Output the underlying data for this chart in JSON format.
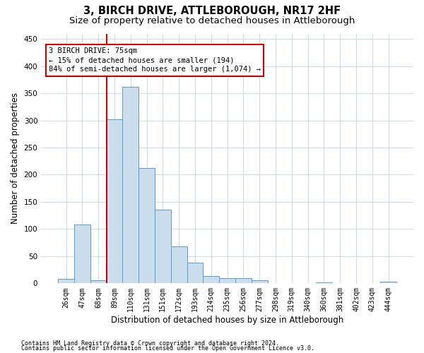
{
  "title": "3, BIRCH DRIVE, ATTLEBOROUGH, NR17 2HF",
  "subtitle": "Size of property relative to detached houses in Attleborough",
  "xlabel": "Distribution of detached houses by size in Attleborough",
  "ylabel": "Number of detached properties",
  "bar_labels": [
    "26sqm",
    "47sqm",
    "68sqm",
    "89sqm",
    "110sqm",
    "131sqm",
    "151sqm",
    "172sqm",
    "193sqm",
    "214sqm",
    "235sqm",
    "256sqm",
    "277sqm",
    "298sqm",
    "319sqm",
    "340sqm",
    "360sqm",
    "381sqm",
    "402sqm",
    "423sqm",
    "444sqm"
  ],
  "bar_values": [
    8,
    108,
    5,
    302,
    362,
    212,
    136,
    68,
    38,
    13,
    10,
    9,
    6,
    1,
    1,
    1,
    2,
    0,
    0,
    0,
    3
  ],
  "bar_color": "#c9dded",
  "bar_edge_color": "#5b9bd5",
  "annotation_text": "3 BIRCH DRIVE: 75sqm\n← 15% of detached houses are smaller (194)\n84% of semi-detached houses are larger (1,074) →",
  "vline_bar_index": 2.5,
  "vline_color": "#cc0000",
  "annotation_box_edge": "#cc0000",
  "ylim": [
    0,
    460
  ],
  "yticks": [
    0,
    50,
    100,
    150,
    200,
    250,
    300,
    350,
    400,
    450
  ],
  "footer1": "Contains HM Land Registry data © Crown copyright and database right 2024.",
  "footer2": "Contains public sector information licensed under the Open Government Licence v3.0.",
  "bg_color": "#ffffff",
  "grid_color": "#c8d8e8",
  "title_fontsize": 10.5,
  "subtitle_fontsize": 9.5,
  "tick_fontsize": 7,
  "ylabel_fontsize": 8.5,
  "xlabel_fontsize": 8.5,
  "annotation_fontsize": 7.5,
  "footer_fontsize": 6
}
